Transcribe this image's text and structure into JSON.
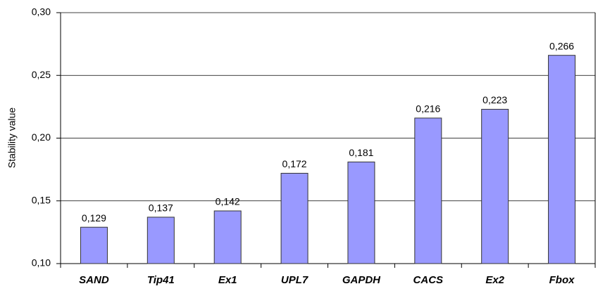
{
  "chart_data": {
    "type": "bar",
    "y_axis_label": "Stability value",
    "categories": [
      "SAND",
      "Tip41",
      "Ex1",
      "UPL7",
      "GAPDH",
      "CACS",
      "Ex2",
      "Fbox"
    ],
    "values": [
      0.129,
      0.137,
      0.142,
      0.172,
      0.181,
      0.216,
      0.223,
      0.266
    ],
    "value_labels": [
      "0,129",
      "0,137",
      "0,142",
      "0,172",
      "0,181",
      "0,216",
      "0,223",
      "0,266"
    ],
    "color": "#9999ff",
    "ylim": [
      0.1,
      0.3
    ],
    "yticks": [
      {
        "value": 0.1,
        "label": "0,10"
      },
      {
        "value": 0.15,
        "label": "0,15"
      },
      {
        "value": 0.2,
        "label": "0,20"
      },
      {
        "value": 0.25,
        "label": "0,25"
      },
      {
        "value": 0.3,
        "label": "0,30"
      }
    ],
    "grid": true
  }
}
